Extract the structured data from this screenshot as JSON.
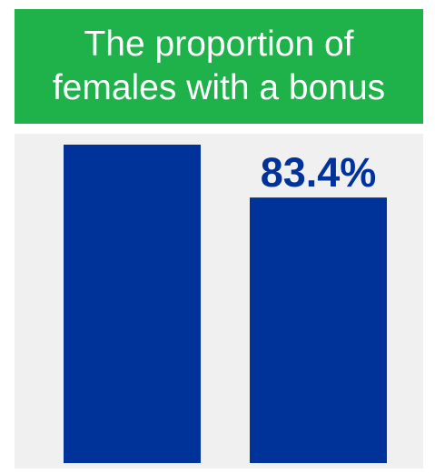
{
  "chart_data": {
    "type": "bar",
    "title": "The proportion of females with a bonus",
    "categories": [
      "",
      ""
    ],
    "values": [
      100,
      83.4
    ],
    "data_labels": [
      "",
      "83.4%"
    ],
    "ylim": [
      0,
      100
    ],
    "bar_color": "#00339a",
    "label_color": "#00339a",
    "header_color": "#1fb14a",
    "background_color": "#f0f0f0",
    "grid": false,
    "legend": "none"
  }
}
